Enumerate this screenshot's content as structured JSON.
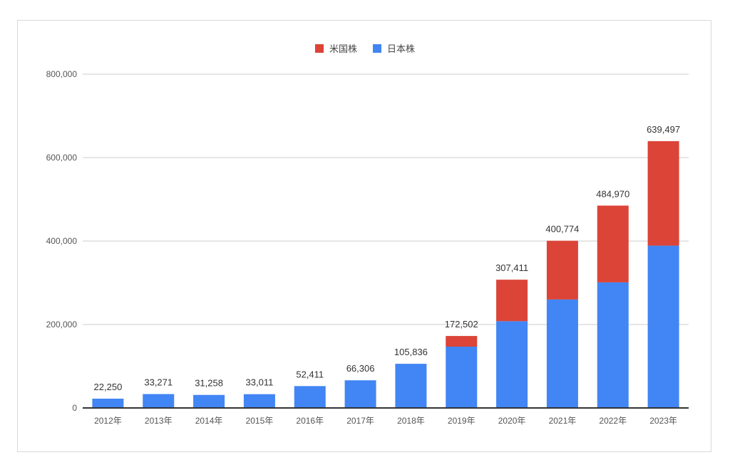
{
  "chart_data": {
    "type": "bar",
    "stacked": true,
    "categories": [
      "2012年",
      "2013年",
      "2014年",
      "2015年",
      "2016年",
      "2017年",
      "2018年",
      "2019年",
      "2020年",
      "2021年",
      "2022年",
      "2023年"
    ],
    "series": [
      {
        "name": "日本株",
        "color": "#4285f4",
        "values": [
          22250,
          33271,
          31258,
          33011,
          52411,
          66306,
          105836,
          147000,
          208000,
          260000,
          301000,
          389000
        ]
      },
      {
        "name": "米国株",
        "color": "#db4437",
        "values": [
          0,
          0,
          0,
          0,
          0,
          0,
          0,
          25502,
          99411,
          140774,
          183970,
          250497
        ]
      }
    ],
    "totals": [
      22250,
      33271,
      31258,
      33011,
      52411,
      66306,
      105836,
      172502,
      307411,
      400774,
      484970,
      639497
    ],
    "total_labels": [
      "22,250",
      "33,271",
      "31,258",
      "33,011",
      "52,411",
      "66,306",
      "105,836",
      "172,502",
      "307,411",
      "400,774",
      "484,970",
      "639,497"
    ],
    "y_ticks": [
      0,
      200000,
      400000,
      600000,
      800000
    ],
    "y_tick_labels": [
      "0",
      "200,000",
      "400,000",
      "600,000",
      "800,000"
    ],
    "ylim": [
      0,
      800000
    ],
    "grid": true,
    "legend_position": "top-center",
    "legend_order": [
      "米国株",
      "日本株"
    ]
  }
}
